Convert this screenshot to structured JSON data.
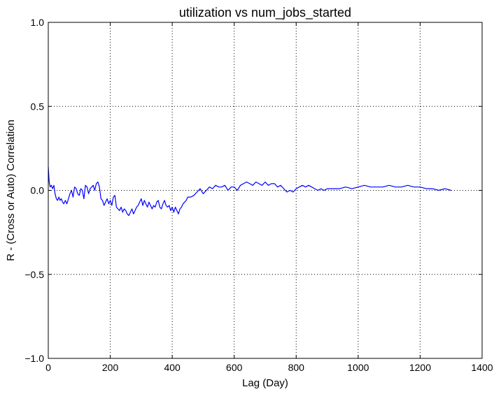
{
  "chart_data": {
    "type": "line",
    "title": "utilization vs num_jobs_started",
    "xlabel": "Lag (Day)",
    "ylabel": "R - (Cross or Auto) Correlation",
    "xlim": [
      0,
      1400
    ],
    "ylim": [
      -1.0,
      1.0
    ],
    "xticks": [
      0,
      200,
      400,
      600,
      800,
      1000,
      1200,
      1400
    ],
    "yticks": [
      -1.0,
      -0.5,
      0.0,
      0.5,
      1.0
    ],
    "xtick_labels": [
      "0",
      "200",
      "400",
      "600",
      "800",
      "1000",
      "1200",
      "1400"
    ],
    "ytick_labels": [
      "−1.0",
      "−0.5",
      "0.0",
      "0.5",
      "1.0"
    ],
    "grid": true,
    "series": [
      {
        "color": "#0000ff",
        "x": [
          0,
          3,
          6,
          10,
          14,
          18,
          22,
          26,
          30,
          34,
          38,
          42,
          46,
          50,
          55,
          60,
          65,
          70,
          75,
          80,
          85,
          90,
          95,
          100,
          105,
          110,
          115,
          120,
          125,
          130,
          135,
          140,
          145,
          150,
          155,
          160,
          165,
          170,
          175,
          180,
          185,
          190,
          195,
          200,
          205,
          210,
          215,
          220,
          225,
          230,
          235,
          240,
          245,
          250,
          255,
          260,
          265,
          270,
          275,
          280,
          285,
          290,
          295,
          300,
          305,
          310,
          315,
          320,
          325,
          330,
          335,
          340,
          345,
          350,
          355,
          360,
          365,
          370,
          375,
          380,
          385,
          390,
          395,
          400,
          405,
          410,
          415,
          420,
          425,
          430,
          435,
          440,
          445,
          450,
          460,
          470,
          480,
          490,
          500,
          510,
          520,
          530,
          540,
          550,
          560,
          570,
          580,
          590,
          600,
          610,
          620,
          630,
          640,
          650,
          660,
          670,
          680,
          690,
          700,
          710,
          720,
          730,
          740,
          750,
          760,
          770,
          780,
          790,
          800,
          810,
          820,
          830,
          840,
          850,
          860,
          870,
          880,
          890,
          900,
          920,
          940,
          960,
          980,
          1000,
          1020,
          1040,
          1060,
          1080,
          1100,
          1120,
          1140,
          1160,
          1180,
          1200,
          1220,
          1240,
          1260,
          1280,
          1300
        ],
        "y": [
          0.14,
          0.05,
          0.02,
          0.03,
          0.01,
          0.03,
          -0.02,
          -0.05,
          -0.06,
          -0.04,
          -0.06,
          -0.05,
          -0.07,
          -0.08,
          -0.06,
          -0.08,
          -0.05,
          -0.02,
          0.0,
          -0.04,
          0.02,
          0.01,
          -0.02,
          -0.03,
          0.01,
          0.0,
          -0.05,
          0.03,
          0.02,
          -0.02,
          0.01,
          0.02,
          0.03,
          0.0,
          0.04,
          0.05,
          0.02,
          -0.05,
          -0.06,
          -0.09,
          -0.07,
          -0.05,
          -0.08,
          -0.06,
          -0.09,
          -0.04,
          -0.03,
          -0.1,
          -0.11,
          -0.12,
          -0.1,
          -0.13,
          -0.11,
          -0.12,
          -0.14,
          -0.15,
          -0.13,
          -0.11,
          -0.14,
          -0.12,
          -0.1,
          -0.09,
          -0.07,
          -0.05,
          -0.09,
          -0.06,
          -0.08,
          -0.1,
          -0.07,
          -0.09,
          -0.11,
          -0.09,
          -0.1,
          -0.07,
          -0.06,
          -0.1,
          -0.11,
          -0.08,
          -0.06,
          -0.09,
          -0.1,
          -0.09,
          -0.12,
          -0.1,
          -0.13,
          -0.1,
          -0.12,
          -0.14,
          -0.11,
          -0.1,
          -0.08,
          -0.07,
          -0.06,
          -0.04,
          -0.04,
          -0.03,
          -0.01,
          0.01,
          -0.02,
          0.0,
          0.02,
          0.01,
          0.03,
          0.02,
          0.02,
          0.03,
          0.0,
          0.02,
          0.02,
          0.0,
          0.03,
          0.04,
          0.05,
          0.04,
          0.03,
          0.05,
          0.04,
          0.03,
          0.05,
          0.03,
          0.04,
          0.04,
          0.02,
          0.03,
          0.01,
          -0.01,
          0.0,
          -0.01,
          0.01,
          0.02,
          0.03,
          0.02,
          0.03,
          0.02,
          0.01,
          0.0,
          0.01,
          0.0,
          0.01,
          0.01,
          0.01,
          0.02,
          0.01,
          0.02,
          0.03,
          0.02,
          0.02,
          0.02,
          0.03,
          0.02,
          0.02,
          0.03,
          0.02,
          0.02,
          0.01,
          0.01,
          0.0,
          0.01,
          0.0
        ]
      }
    ]
  }
}
